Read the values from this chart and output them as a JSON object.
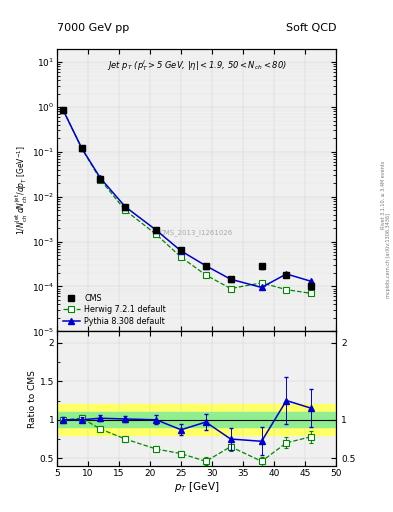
{
  "title_left": "7000 GeV pp",
  "title_right": "Soft QCD",
  "cms_label": "CMS_2013_I1261026",
  "rivet_label": "Rivet 3.1.10, ≥ 3.4M events",
  "mcplots_label": "mcplots.cern.ch [arXiv:1306.3436]",
  "ylabel_main": "1/N_{ch}jet dN_{ch}jet/dp_{T} [GeV]",
  "ylabel_ratio": "Ratio to CMS",
  "xlabel": "p_{T} [GeV]",
  "cms_x": [
    6,
    9,
    12,
    16,
    21,
    25,
    29,
    33,
    38,
    42,
    46
  ],
  "cms_y": [
    0.85,
    0.12,
    0.025,
    0.006,
    0.0018,
    0.00065,
    0.00028,
    0.000145,
    0.00028,
    0.00018,
    0.0001
  ],
  "cms_yerr": [
    0.05,
    0.008,
    0.002,
    0.0005,
    0.00015,
    5e-05,
    2.5e-05,
    1.5e-05,
    3e-05,
    2e-05,
    1e-05
  ],
  "herwig_x": [
    6,
    9,
    12,
    16,
    21,
    25,
    29,
    33,
    38,
    42,
    46
  ],
  "herwig_y": [
    0.85,
    0.12,
    0.024,
    0.005,
    0.00145,
    0.00045,
    0.00018,
    9e-05,
    0.00012,
    8.5e-05,
    7e-05
  ],
  "pythia_x": [
    6,
    9,
    12,
    16,
    21,
    25,
    29,
    33,
    38,
    42,
    46
  ],
  "pythia_y": [
    0.85,
    0.12,
    0.026,
    0.006,
    0.0018,
    0.00062,
    0.00029,
    0.000145,
    9.5e-05,
    0.00019,
    0.00013
  ],
  "ratio_herwig_x": [
    6,
    9,
    12,
    16,
    21,
    25,
    29,
    33,
    38,
    42,
    46
  ],
  "ratio_herwig_y": [
    1.0,
    1.02,
    0.88,
    0.75,
    0.62,
    0.56,
    0.46,
    0.65,
    0.46,
    0.7,
    0.78
  ],
  "ratio_herwig_yerr": [
    0.04,
    0.04,
    0.04,
    0.04,
    0.04,
    0.04,
    0.05,
    0.06,
    0.06,
    0.07,
    0.08
  ],
  "ratio_pythia_x": [
    6,
    9,
    12,
    16,
    21,
    25,
    29,
    33,
    38,
    42,
    46
  ],
  "ratio_pythia_y": [
    1.0,
    1.0,
    1.02,
    1.01,
    1.0,
    0.87,
    0.97,
    0.75,
    0.72,
    1.25,
    1.15
  ],
  "ratio_pythia_yerr": [
    0.03,
    0.03,
    0.04,
    0.04,
    0.06,
    0.07,
    0.1,
    0.14,
    0.18,
    0.3,
    0.25
  ],
  "band_inner_color": "#90ee90",
  "band_outer_color": "#ffff66",
  "cms_color": "#000000",
  "herwig_color": "#008800",
  "pythia_color": "#0000cc",
  "xlim": [
    5,
    50
  ],
  "ylim_main": [
    1e-05,
    20
  ],
  "ylim_ratio": [
    0.4,
    2.15
  ]
}
